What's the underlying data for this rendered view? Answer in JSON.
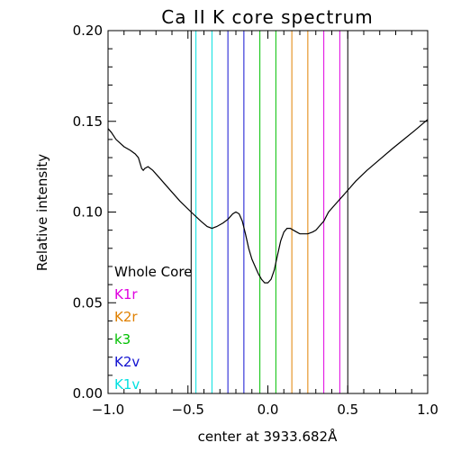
{
  "chart_data": {
    "type": "line",
    "title": "Ca II K core spectrum",
    "xlabel": "center at 3933.682Å",
    "ylabel": "Relative intensity",
    "xlim": [
      -1.0,
      1.0
    ],
    "ylim": [
      0.0,
      0.2
    ],
    "xticks": [
      -1.0,
      -0.5,
      0.0,
      0.5,
      1.0
    ],
    "xtick_labels": [
      "−1.0",
      "−0.5",
      "0.0",
      "0.5",
      "1.0"
    ],
    "yticks": [
      0.0,
      0.05,
      0.1,
      0.15,
      0.2
    ],
    "ytick_labels": [
      "0.00",
      "0.05",
      "0.10",
      "0.15",
      "0.20"
    ],
    "grid": false,
    "legend_placement": "lower-left",
    "series": [
      {
        "color": "#000000",
        "x": [
          -1.0,
          -0.98,
          -0.95,
          -0.9,
          -0.86,
          -0.83,
          -0.81,
          -0.8,
          -0.79,
          -0.78,
          -0.77,
          -0.75,
          -0.72,
          -0.68,
          -0.62,
          -0.55,
          -0.48,
          -0.42,
          -0.38,
          -0.35,
          -0.32,
          -0.28,
          -0.25,
          -0.22,
          -0.2,
          -0.18,
          -0.16,
          -0.14,
          -0.12,
          -0.1,
          -0.08,
          -0.06,
          -0.04,
          -0.02,
          0.0,
          0.02,
          0.04,
          0.06,
          0.08,
          0.1,
          0.12,
          0.14,
          0.16,
          0.18,
          0.2,
          0.22,
          0.25,
          0.28,
          0.3,
          0.32,
          0.35,
          0.38,
          0.42,
          0.48,
          0.55,
          0.62,
          0.7,
          0.78,
          0.85,
          0.92,
          1.0
        ],
        "y": [
          0.146,
          0.144,
          0.14,
          0.136,
          0.134,
          0.132,
          0.13,
          0.127,
          0.124,
          0.123,
          0.124,
          0.125,
          0.123,
          0.119,
          0.113,
          0.106,
          0.1,
          0.095,
          0.092,
          0.091,
          0.092,
          0.094,
          0.096,
          0.099,
          0.1,
          0.099,
          0.095,
          0.088,
          0.08,
          0.074,
          0.07,
          0.066,
          0.063,
          0.061,
          0.061,
          0.063,
          0.068,
          0.076,
          0.084,
          0.089,
          0.091,
          0.091,
          0.09,
          0.089,
          0.088,
          0.088,
          0.088,
          0.089,
          0.09,
          0.092,
          0.095,
          0.1,
          0.104,
          0.11,
          0.117,
          0.123,
          0.129,
          0.135,
          0.14,
          0.145,
          0.151
        ]
      }
    ],
    "vertical_lines": [
      {
        "x": -0.48,
        "color": "#000000"
      },
      {
        "x": -0.45,
        "color": "#00e0e0"
      },
      {
        "x": -0.35,
        "color": "#00e0e0"
      },
      {
        "x": -0.25,
        "color": "#1010d0"
      },
      {
        "x": -0.15,
        "color": "#1010d0"
      },
      {
        "x": -0.05,
        "color": "#00c000"
      },
      {
        "x": 0.05,
        "color": "#00c000"
      },
      {
        "x": 0.15,
        "color": "#e08000"
      },
      {
        "x": 0.25,
        "color": "#e08000"
      },
      {
        "x": 0.35,
        "color": "#e000e0"
      },
      {
        "x": 0.45,
        "color": "#e000e0"
      },
      {
        "x": 0.5,
        "color": "#000000"
      }
    ],
    "legend": [
      {
        "label": "Whole Core",
        "color": "#000000"
      },
      {
        "label": "K1r",
        "color": "#e000e0"
      },
      {
        "label": "K2r",
        "color": "#e08000"
      },
      {
        "label": "k3",
        "color": "#00c000"
      },
      {
        "label": "K2v",
        "color": "#1010d0"
      },
      {
        "label": "K1v",
        "color": "#00e0e0"
      }
    ]
  }
}
